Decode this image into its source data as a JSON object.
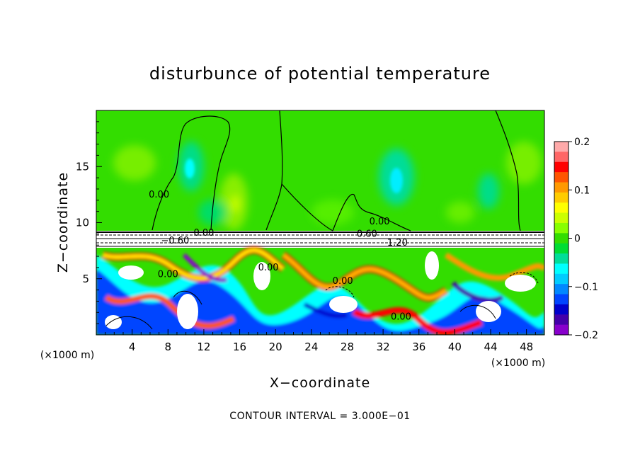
{
  "chart_data": {
    "type": "heatmap",
    "title": "disturbunce of potential temperature",
    "xlabel": "X−coordinate",
    "ylabel": "Z−coordinate",
    "x_unit_label": "(×1000 m)",
    "y_unit_label": "(×1000 m)",
    "xlim": [
      0,
      50
    ],
    "ylim": [
      0,
      20
    ],
    "x_ticks": [
      4,
      8,
      12,
      16,
      20,
      24,
      28,
      32,
      36,
      40,
      44,
      48
    ],
    "y_ticks": [
      5,
      10,
      15
    ],
    "footer": "CONTOUR INTERVAL = 3.000E−01",
    "colorbar": {
      "min": -0.2,
      "max": 0.2,
      "ticks": [
        "0.2",
        "0.1",
        "0",
        "−0.1",
        "−0.2"
      ],
      "tick_values": [
        0.2,
        0.1,
        0,
        -0.1,
        -0.2
      ],
      "colors": [
        "#ffaaaa",
        "#ff6666",
        "#ff0000",
        "#ff5500",
        "#ff9900",
        "#ffcc00",
        "#ffff00",
        "#ccff00",
        "#88ff00",
        "#33dd00",
        "#00dd33",
        "#00dd99",
        "#00ffff",
        "#00ccff",
        "#0088ff",
        "#0044ff",
        "#0000cc",
        "#4400aa",
        "#8800cc",
        "#ffffff"
      ]
    },
    "contour_labels": [
      {
        "text": "0.00",
        "x": 7,
        "z": 12.5
      },
      {
        "text": "0.00",
        "x": 12,
        "z": 9.1
      },
      {
        "text": "−0.60",
        "x": 8.8,
        "z": 8.4
      },
      {
        "text": "0.00",
        "x": 31.6,
        "z": 10.1
      },
      {
        "text": "0.60",
        "x": 30.2,
        "z": 9.0
      },
      {
        "text": "1.20",
        "x": 33.6,
        "z": 8.2
      },
      {
        "text": "0.00",
        "x": 8,
        "z": 5.4
      },
      {
        "text": "0.00",
        "x": 19.2,
        "z": 6.0
      },
      {
        "text": "0.00",
        "x": 27.5,
        "z": 4.8
      },
      {
        "text": "0.00",
        "x": 34,
        "z": 1.6
      }
    ]
  }
}
